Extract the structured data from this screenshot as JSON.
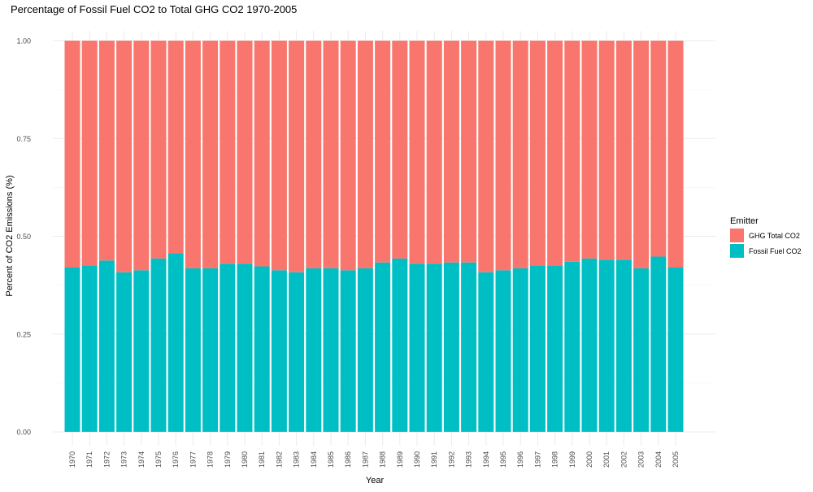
{
  "chart_data": {
    "type": "bar",
    "stacked": true,
    "title": "Percentage of Fossil Fuel CO2 to Total GHG CO2 1970-2005",
    "xlabel": "Year",
    "ylabel": "Percent of CO2 Emissions (%)",
    "ylim": [
      0,
      1
    ],
    "yticks": [
      "0.00",
      "0.25",
      "0.50",
      "0.75",
      "1.00"
    ],
    "grid": true,
    "legend_position": "right",
    "legend_title": "Emitter",
    "categories": [
      "1970",
      "1971",
      "1972",
      "1973",
      "1974",
      "1975",
      "1976",
      "1977",
      "1978",
      "1979",
      "1980",
      "1981",
      "1982",
      "1983",
      "1984",
      "1985",
      "1986",
      "1987",
      "1988",
      "1989",
      "1990",
      "1991",
      "1992",
      "1993",
      "1994",
      "1995",
      "1996",
      "1997",
      "1998",
      "1999",
      "2000",
      "2001",
      "2002",
      "2003",
      "2004",
      "2005"
    ],
    "series": [
      {
        "name": "Fossil Fuel CO2",
        "color": "#00BFC4",
        "values": [
          0.42,
          0.425,
          0.438,
          0.408,
          0.413,
          0.443,
          0.457,
          0.418,
          0.418,
          0.43,
          0.43,
          0.423,
          0.413,
          0.408,
          0.418,
          0.418,
          0.413,
          0.418,
          0.433,
          0.443,
          0.43,
          0.43,
          0.433,
          0.433,
          0.408,
          0.413,
          0.418,
          0.425,
          0.425,
          0.435,
          0.443,
          0.44,
          0.44,
          0.418,
          0.448,
          0.42
        ]
      },
      {
        "name": "GHG Total CO2",
        "color": "#F8766D",
        "values": [
          0.58,
          0.575,
          0.562,
          0.592,
          0.587,
          0.557,
          0.543,
          0.582,
          0.582,
          0.57,
          0.57,
          0.577,
          0.587,
          0.592,
          0.582,
          0.582,
          0.587,
          0.582,
          0.567,
          0.557,
          0.57,
          0.57,
          0.567,
          0.567,
          0.592,
          0.587,
          0.582,
          0.575,
          0.575,
          0.565,
          0.557,
          0.56,
          0.56,
          0.582,
          0.552,
          0.58
        ]
      }
    ],
    "legend_order": [
      "GHG Total CO2",
      "Fossil Fuel CO2"
    ]
  }
}
